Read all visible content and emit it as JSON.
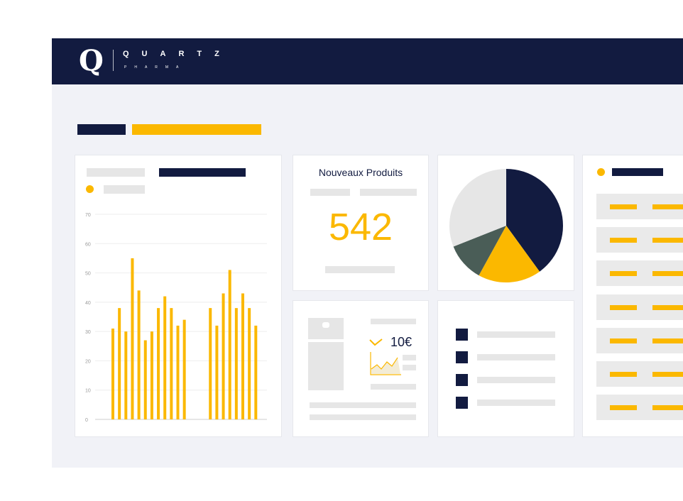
{
  "header": {
    "logo_letter": "Q",
    "brand_name": "QUARTZ",
    "brand_sub": "PHARMA",
    "bg_color": "#121b40"
  },
  "kpi": {
    "title": "Nouveaux Produits",
    "value": "542"
  },
  "product": {
    "price": "10€"
  },
  "colors": {
    "navy": "#121b40",
    "yellow": "#fbb800",
    "slate": "#4a5d57",
    "light_gray": "#e6e6e6"
  },
  "chart_data": [
    {
      "type": "bar",
      "y_ticks": [
        "0",
        "10",
        "20",
        "30",
        "40",
        "50",
        "60",
        "70"
      ],
      "ylim": [
        0,
        70
      ],
      "grid": true,
      "values": [
        31,
        38,
        30,
        55,
        44,
        27,
        30,
        38,
        42,
        38,
        32,
        34,
        null,
        null,
        null,
        38,
        32,
        43,
        51,
        38,
        43,
        38,
        32
      ]
    },
    {
      "type": "pie",
      "slices": [
        {
          "name": "",
          "value": 40,
          "color": "#121b40"
        },
        {
          "name": "",
          "value": 18,
          "color": "#fbb800"
        },
        {
          "name": "",
          "value": 11,
          "color": "#4a5d57"
        },
        {
          "name": "",
          "value": 31,
          "color": "#e6e6e6"
        }
      ]
    }
  ]
}
